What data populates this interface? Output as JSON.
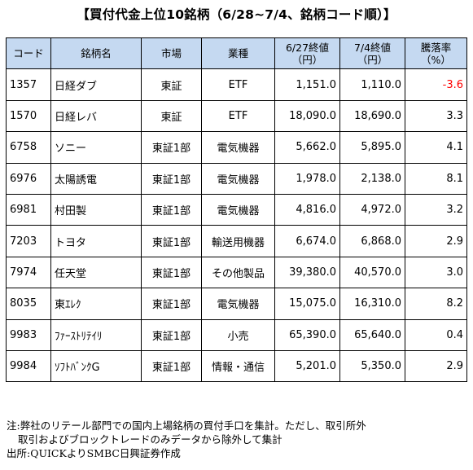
{
  "title": "【買付代金上位10銘柄（6/28~7/4、銘柄コード順）】",
  "headers": {
    "code": "コード",
    "name": "銘柄名",
    "market": "市場",
    "sector": "業種",
    "prev_line1": "6/27終値",
    "prev_line2": "（円）",
    "close_line1": "7/4終値",
    "close_line2": "（円）",
    "change_line1": "騰落率",
    "change_line2": "（%）"
  },
  "rows": [
    {
      "code": "1357",
      "name": "日経ダブ",
      "market": "東証",
      "sector": "ETF",
      "prev": "1,151.0",
      "close": "1,110.0",
      "change": "-3.6"
    },
    {
      "code": "1570",
      "name": "日経レバ",
      "market": "東証",
      "sector": "ETF",
      "prev": "18,090.0",
      "close": "18,690.0",
      "change": "3.3"
    },
    {
      "code": "6758",
      "name": "ソニー",
      "market": "東証1部",
      "sector": "電気機器",
      "prev": "5,662.0",
      "close": "5,895.0",
      "change": "4.1"
    },
    {
      "code": "6976",
      "name": "太陽誘電",
      "market": "東証1部",
      "sector": "電気機器",
      "prev": "1,978.0",
      "close": "2,138.0",
      "change": "8.1"
    },
    {
      "code": "6981",
      "name": "村田製",
      "market": "東証1部",
      "sector": "電気機器",
      "prev": "4,816.0",
      "close": "4,972.0",
      "change": "3.2"
    },
    {
      "code": "7203",
      "name": "トヨタ",
      "market": "東証1部",
      "sector": "輸送用機器",
      "prev": "6,674.0",
      "close": "6,868.0",
      "change": "2.9"
    },
    {
      "code": "7974",
      "name": "任天堂",
      "market": "東証1部",
      "sector": "その他製品",
      "prev": "39,380.0",
      "close": "40,570.0",
      "change": "3.0"
    },
    {
      "code": "8035",
      "name": "東ｴﾚｸ",
      "market": "東証1部",
      "sector": "電気機器",
      "prev": "15,075.0",
      "close": "16,310.0",
      "change": "8.2"
    },
    {
      "code": "9983",
      "name": "ﾌｧｰｽﾄﾘﾃｲﾘ",
      "market": "東証1部",
      "sector": "小売",
      "prev": "65,390.0",
      "close": "65,640.0",
      "change": "0.4"
    },
    {
      "code": "9984",
      "name": "ｿﾌﾄﾊﾞﾝｸG",
      "market": "東証1部",
      "sector": "情報・通信",
      "prev": "5,201.0",
      "close": "5,350.0",
      "change": "2.9"
    }
  ],
  "notes": {
    "line1": "注:弊社のリテール部門での国内上場銘柄の買付手口を集計。ただし、取引所外",
    "line2": "取引およびブロックトレードのみデータから除外して集計",
    "line3": "出所:QUICKよりSMBC日興証券作成"
  },
  "colors": {
    "header_bg": "#c5d9f1",
    "negative": "#ff0000"
  }
}
